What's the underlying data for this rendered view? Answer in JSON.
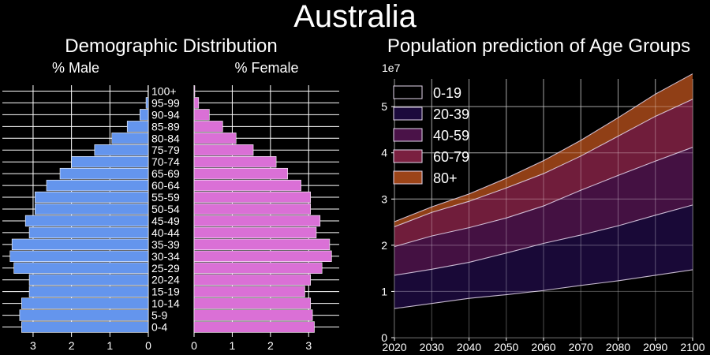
{
  "figure": {
    "title": "Australia"
  },
  "chart_data": [
    {
      "type": "bar",
      "orientation": "horizontal-pyramid",
      "title": "Demographic Distribution",
      "male_title": "% Male",
      "female_title": "% Female",
      "categories": [
        "0-4",
        "5-9",
        "10-14",
        "15-19",
        "20-24",
        "25-29",
        "30-34",
        "35-39",
        "40-44",
        "45-49",
        "50-54",
        "55-59",
        "60-64",
        "65-69",
        "70-74",
        "75-79",
        "80-84",
        "85-89",
        "90-94",
        "95-99",
        "100+"
      ],
      "series": [
        {
          "name": "% Male",
          "color": "#6495ED",
          "values": [
            3.3,
            3.35,
            3.3,
            3.1,
            3.1,
            3.5,
            3.6,
            3.55,
            3.1,
            3.2,
            2.95,
            2.95,
            2.65,
            2.3,
            2.0,
            1.4,
            0.95,
            0.55,
            0.22,
            0.06,
            0.01
          ]
        },
        {
          "name": "% Female",
          "color": "#DA70D6",
          "values": [
            3.15,
            3.1,
            3.05,
            2.9,
            3.05,
            3.35,
            3.6,
            3.55,
            3.2,
            3.3,
            3.05,
            3.05,
            2.8,
            2.45,
            2.15,
            1.55,
            1.1,
            0.75,
            0.4,
            0.12,
            0.02
          ]
        }
      ],
      "male_axis": {
        "ticks": [
          3,
          2,
          1,
          0
        ],
        "lim": [
          0,
          3.8
        ]
      },
      "female_axis": {
        "ticks": [
          0,
          1,
          2,
          3
        ],
        "lim": [
          0,
          3.8
        ]
      },
      "grid": true
    },
    {
      "type": "area",
      "stacked": true,
      "title": "Population prediction of Age Groups",
      "y_offset_label": "1e7",
      "x": [
        2020,
        2030,
        2040,
        2050,
        2060,
        2070,
        2080,
        2090,
        2100
      ],
      "xticks": [
        2020,
        2030,
        2040,
        2050,
        2060,
        2070,
        2080,
        2090,
        2100
      ],
      "yticks": [
        0,
        1,
        2,
        3,
        4,
        5
      ],
      "xlim": [
        2020,
        2100
      ],
      "ylim": [
        0,
        5.6
      ],
      "series": [
        {
          "name": "0-19",
          "color": "#000000",
          "values": [
            0.63,
            0.74,
            0.85,
            0.93,
            1.02,
            1.13,
            1.23,
            1.35,
            1.47
          ]
        },
        {
          "name": "20-39",
          "color": "#1B0A3C",
          "values": [
            0.72,
            0.74,
            0.78,
            0.9,
            1.02,
            1.09,
            1.19,
            1.3,
            1.4
          ]
        },
        {
          "name": "40-59",
          "color": "#4A1248",
          "values": [
            0.62,
            0.72,
            0.75,
            0.76,
            0.81,
            0.97,
            1.09,
            1.17,
            1.25
          ]
        },
        {
          "name": "60-79",
          "color": "#7A2040",
          "values": [
            0.43,
            0.51,
            0.57,
            0.65,
            0.7,
            0.74,
            0.85,
            0.97,
            1.04
          ]
        },
        {
          "name": "80+",
          "color": "#9C4418",
          "values": [
            0.11,
            0.12,
            0.16,
            0.21,
            0.28,
            0.34,
            0.4,
            0.48,
            0.55
          ]
        }
      ],
      "legend": "upper-left",
      "grid": true
    }
  ]
}
